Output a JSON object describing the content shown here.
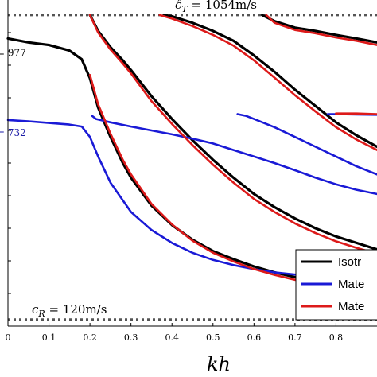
{
  "chart_data": {
    "type": "line",
    "xlabel": "kh",
    "ylabel": "",
    "xlim": [
      0,
      0.9
    ],
    "ylim": [
      100,
      1100
    ],
    "xticks": [
      0,
      0.1,
      0.2,
      0.3,
      0.4,
      0.5,
      0.6,
      0.7,
      0.8
    ],
    "xtick_labels": [
      "0",
      "0.1",
      "0.2",
      "0.3",
      "0.4",
      "0.5",
      "0.6",
      "0.7",
      "0.8"
    ],
    "grid": false,
    "legend_position": "bottom-right",
    "reference_lines": [
      {
        "label_base": "ĉ",
        "label_sub": "T",
        "label_rest": " = 1054m/s",
        "y": 1054,
        "color": "#555555"
      },
      {
        "label_base": "c",
        "label_sub": "R",
        "label_rest": " = 120m/s",
        "y": 120,
        "color": "#555555"
      }
    ],
    "side_labels": [
      {
        "text": "= 977",
        "y": 977,
        "color": "#000000"
      },
      {
        "text": "= 732",
        "y": 732,
        "color": "#1a1aa6"
      }
    ],
    "series": [
      {
        "name": "Isotr",
        "color": "#000000",
        "branches": [
          {
            "x": [
              0,
              0.05,
              0.1,
              0.15,
              0.18,
              0.2,
              0.22,
              0.25,
              0.28,
              0.3,
              0.35,
              0.4,
              0.45,
              0.5,
              0.55,
              0.6,
              0.65,
              0.7,
              0.75,
              0.8,
              0.85,
              0.9
            ],
            "y": [
              982,
              970,
              962,
              945,
              918,
              860,
              770,
              680,
              600,
              555,
              470,
              410,
              365,
              330,
              305,
              283,
              265,
              250,
              238,
              228,
              220,
              212
            ]
          },
          {
            "x": [
              0.2,
              0.22,
              0.25,
              0.28,
              0.3,
              0.35,
              0.4,
              0.45,
              0.5,
              0.55,
              0.6,
              0.65,
              0.7,
              0.75,
              0.8,
              0.85,
              0.9
            ],
            "y": [
              1054,
              1005,
              955,
              915,
              885,
              805,
              735,
              670,
              610,
              555,
              505,
              465,
              430,
              400,
              375,
              355,
              335
            ]
          },
          {
            "x": [
              0.38,
              0.4,
              0.45,
              0.5,
              0.55,
              0.6,
              0.65,
              0.7,
              0.75,
              0.8,
              0.85,
              0.9
            ],
            "y": [
              1054,
              1050,
              1030,
              1005,
              975,
              930,
              880,
              825,
              775,
              725,
              685,
              650
            ]
          },
          {
            "x": [
              0.62,
              0.65,
              0.7,
              0.75,
              0.8,
              0.85,
              0.9
            ],
            "y": [
              1054,
              1035,
              1015,
              1005,
              993,
              982,
              970
            ]
          }
        ]
      },
      {
        "name": "Mate",
        "color": "#1a1ad6",
        "branches": [
          {
            "x": [
              0,
              0.05,
              0.1,
              0.15,
              0.18,
              0.2,
              0.22,
              0.25,
              0.3,
              0.35,
              0.4,
              0.45,
              0.5,
              0.55,
              0.6,
              0.65,
              0.7,
              0.75,
              0.8,
              0.85,
              0.9
            ],
            "y": [
              732,
              728,
              723,
              718,
              712,
              680,
              620,
              540,
              450,
              395,
              355,
              325,
              303,
              287,
              275,
              265,
              258,
              252,
              248,
              245,
              243
            ]
          },
          {
            "x": [
              0.205,
              0.215,
              0.25,
              0.3,
              0.35,
              0.4,
              0.45,
              0.5,
              0.55,
              0.6,
              0.65,
              0.7,
              0.75,
              0.8,
              0.85,
              0.9
            ],
            "y": [
              745,
              735,
              725,
              712,
              700,
              688,
              675,
              660,
              640,
              620,
              600,
              578,
              555,
              535,
              518,
              505
            ]
          },
          {
            "x": [
              0.56,
              0.58,
              0.6,
              0.65,
              0.7,
              0.75,
              0.8,
              0.85,
              0.9
            ],
            "y": [
              750,
              745,
              735,
              710,
              680,
              650,
              620,
              590,
              565
            ]
          },
          {
            "x": [
              0.78,
              0.8,
              0.85,
              0.9
            ],
            "y": [
              750,
              750,
              749,
              748
            ]
          }
        ]
      },
      {
        "name": "Mate",
        "color": "#dd1a1a",
        "branches": [
          {
            "x": [
              0.2,
              0.22,
              0.25,
              0.28,
              0.3,
              0.35,
              0.4,
              0.45,
              0.5,
              0.55,
              0.6,
              0.65,
              0.7,
              0.75,
              0.8,
              0.85,
              0.9
            ],
            "y": [
              1054,
              1000,
              948,
              905,
              875,
              790,
              720,
              655,
              595,
              540,
              490,
              450,
              415,
              385,
              360,
              340,
              322
            ]
          },
          {
            "x": [
              0.2,
              0.22,
              0.25,
              0.28,
              0.3,
              0.35,
              0.4,
              0.45,
              0.5,
              0.55,
              0.6,
              0.65,
              0.7,
              0.75,
              0.8,
              0.85,
              0.9
            ],
            "y": [
              870,
              780,
              690,
              610,
              565,
              475,
              412,
              362,
              325,
              298,
              275,
              257,
              242,
              230,
              220,
              212,
              205
            ]
          },
          {
            "x": [
              0.37,
              0.4,
              0.45,
              0.5,
              0.55,
              0.6,
              0.65,
              0.7,
              0.75,
              0.8,
              0.85,
              0.9
            ],
            "y": [
              1054,
              1043,
              1020,
              993,
              960,
              915,
              862,
              808,
              758,
              710,
              672,
              640
            ]
          },
          {
            "x": [
              0.63,
              0.65,
              0.7,
              0.75,
              0.8,
              0.85,
              0.9
            ],
            "y": [
              1054,
              1030,
              1008,
              998,
              985,
              975,
              962
            ]
          },
          {
            "x": [
              0.8,
              0.85,
              0.9
            ],
            "y": [
              752,
              752,
              750
            ]
          }
        ]
      }
    ]
  }
}
